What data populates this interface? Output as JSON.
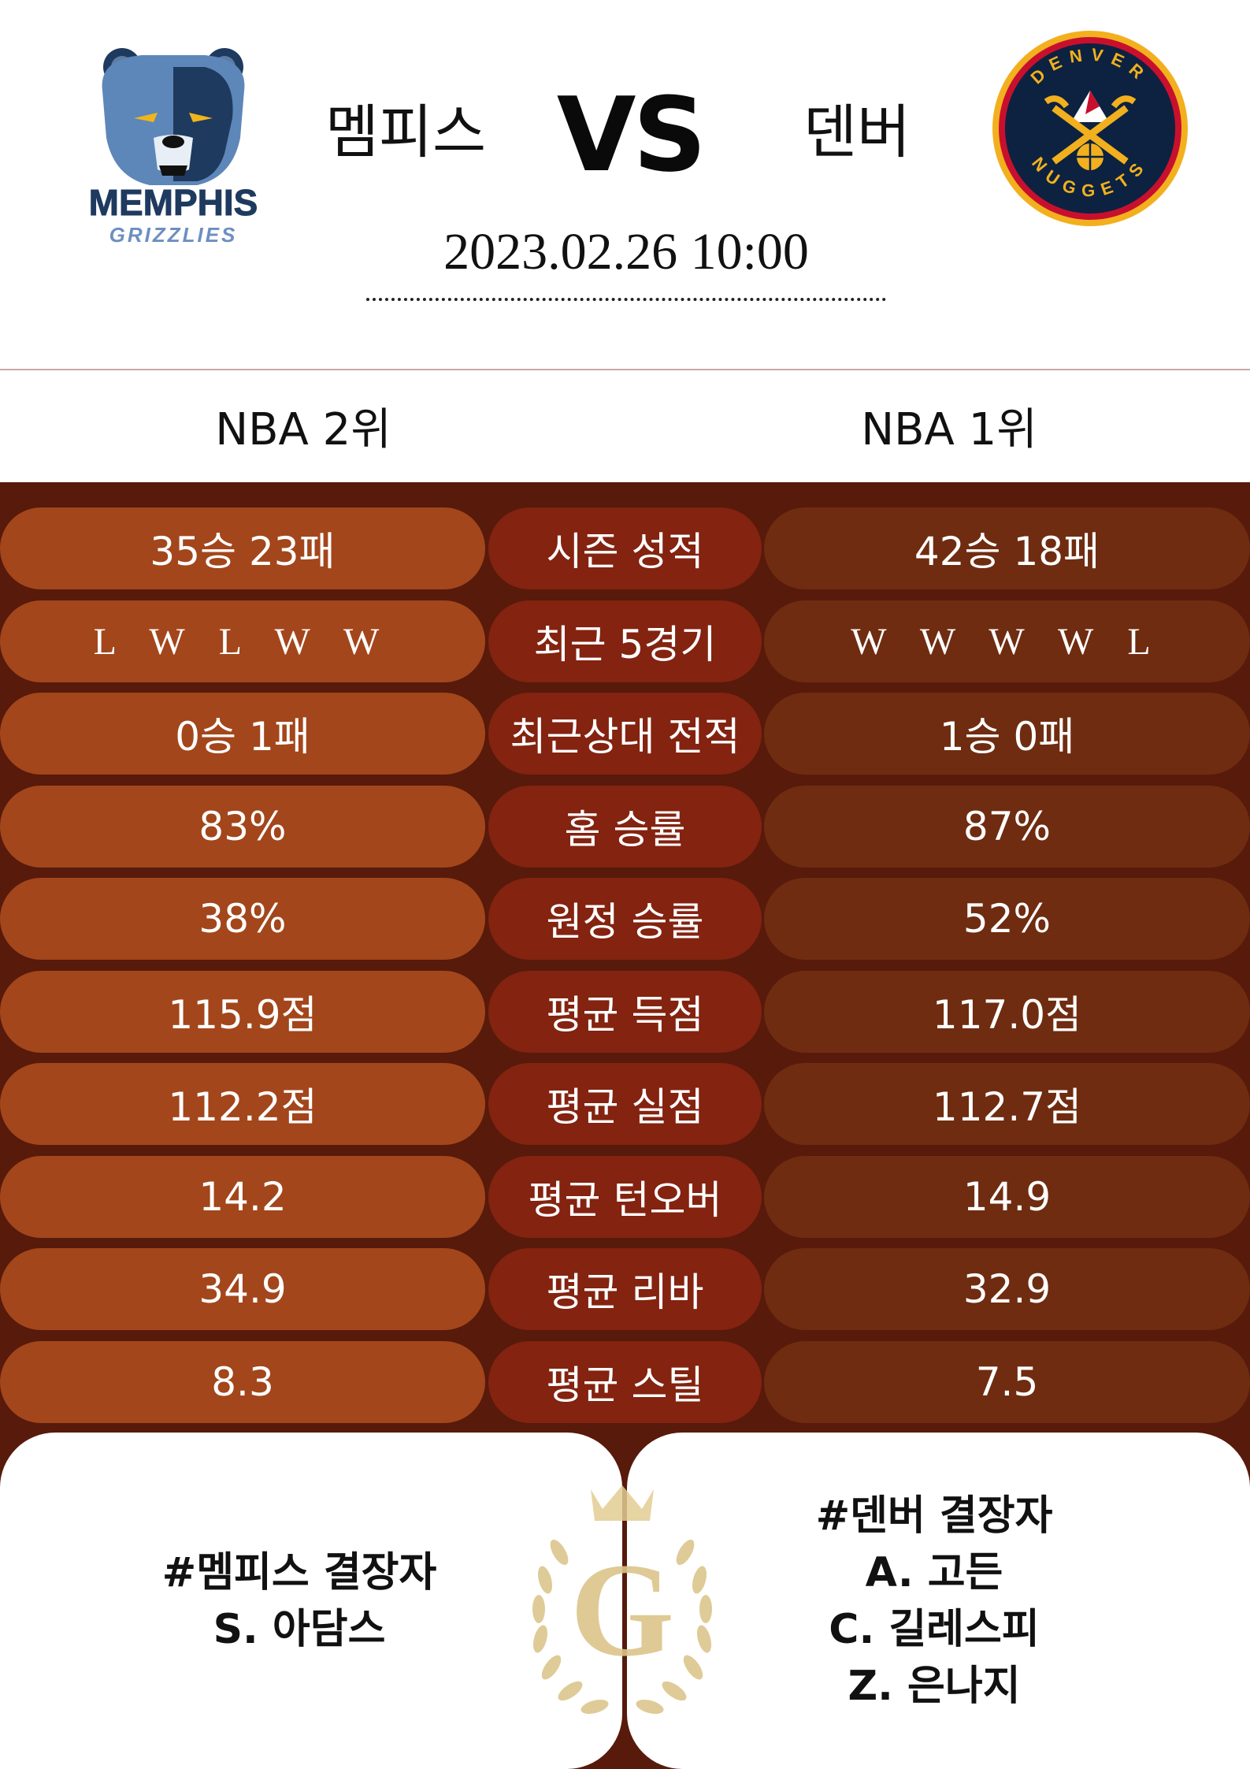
{
  "header": {
    "home_team": "멤피스",
    "away_team": "덴버",
    "vs": "VS",
    "datetime": "2023.02.26  10:00",
    "home_logo_text": "MEMPHIS",
    "home_logo_subtext": "GRIZZLIES",
    "away_logo_text_top": "DENVER",
    "away_logo_text_bottom": "NUGGETS"
  },
  "ranks": {
    "home": "NBA 2위",
    "away": "NBA 1위"
  },
  "stats": [
    {
      "label": "시즌 성적",
      "home": "35승 23패",
      "away": "42승 18패"
    },
    {
      "label": "최근 5경기",
      "home": "L W L W W",
      "away": "W W W W L",
      "form": true
    },
    {
      "label": "최근상대 전적",
      "home": "0승 1패",
      "away": "1승 0패"
    },
    {
      "label": "홈 승률",
      "home": "83%",
      "away": "87%"
    },
    {
      "label": "원정 승률",
      "home": "38%",
      "away": "52%"
    },
    {
      "label": "평균 득점",
      "home": "115.9점",
      "away": "117.0점"
    },
    {
      "label": "평균 실점",
      "home": "112.2점",
      "away": "112.7점"
    },
    {
      "label": "평균 턴오버",
      "home": "14.2",
      "away": "14.9"
    },
    {
      "label": "평균 리바",
      "home": "34.9",
      "away": "32.9"
    },
    {
      "label": "평균 스틸",
      "home": "8.3",
      "away": "7.5"
    }
  ],
  "absences": {
    "home_title": "#멤피스 결장자",
    "home_players": [
      "S. 아담스"
    ],
    "away_title": "#덴버 결장자",
    "away_players": [
      "A. 고든",
      "C. 길레스피",
      "Z. 은나지"
    ]
  },
  "emblem_letter": "G",
  "colors": {
    "stats_bg": "#571a0b",
    "home_pill": "#a3461b",
    "label_pill": "#832310",
    "away_pill": "#6f2c10",
    "gold": "#d8bf7e"
  }
}
